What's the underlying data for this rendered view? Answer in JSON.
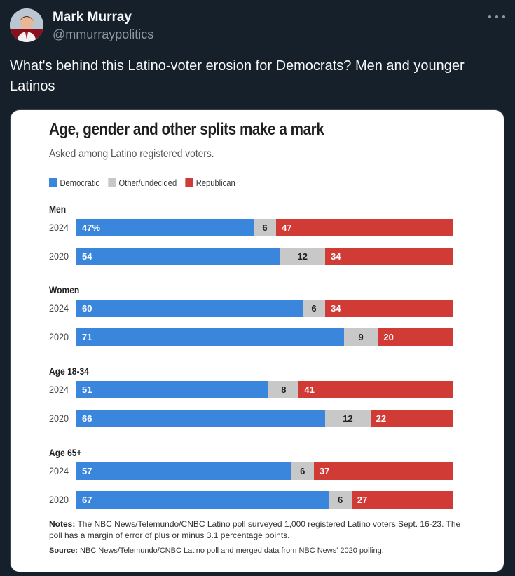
{
  "author": {
    "name": "Mark Murray",
    "handle": "@mmurraypolitics"
  },
  "tweet_text": "What's behind this Latino-voter erosion for Democrats? Men and younger Latinos",
  "chart_data": {
    "type": "bar",
    "stacked": true,
    "orientation": "horizontal",
    "title": "Age, gender and other splits make a mark",
    "subtitle": "Asked among Latino registered voters.",
    "legend": [
      {
        "name": "Democratic",
        "color": "#3a86dc"
      },
      {
        "name": "Other/undecided",
        "color": "#c8c8c8"
      },
      {
        "name": "Republican",
        "color": "#d13b35"
      }
    ],
    "groups": [
      {
        "label": "Men",
        "rows": [
          {
            "year": "2024",
            "dem": 47,
            "dem_label": "47%",
            "other": 6,
            "rep": 47
          },
          {
            "year": "2020",
            "dem": 54,
            "dem_label": "54",
            "other": 12,
            "rep": 34
          }
        ]
      },
      {
        "label": "Women",
        "rows": [
          {
            "year": "2024",
            "dem": 60,
            "dem_label": "60",
            "other": 6,
            "rep": 34
          },
          {
            "year": "2020",
            "dem": 71,
            "dem_label": "71",
            "other": 9,
            "rep": 20
          }
        ]
      },
      {
        "label": "Age 18-34",
        "rows": [
          {
            "year": "2024",
            "dem": 51,
            "dem_label": "51",
            "other": 8,
            "rep": 41
          },
          {
            "year": "2020",
            "dem": 66,
            "dem_label": "66",
            "other": 12,
            "rep": 22
          }
        ]
      },
      {
        "label": "Age 65+",
        "rows": [
          {
            "year": "2024",
            "dem": 57,
            "dem_label": "57",
            "other": 6,
            "rep": 37
          },
          {
            "year": "2020",
            "dem": 67,
            "dem_label": "67",
            "other": 6,
            "rep": 27
          }
        ]
      }
    ],
    "notes_label": "Notes:",
    "notes": "The NBC News/Telemundo/CNBC Latino poll surveyed 1,000 registered Latino voters Sept. 16-23. The poll has a margin of error of plus or minus 3.1 percentage points.",
    "source_label": "Source:",
    "source": "NBC News/Telemundo/CNBC Latino poll and merged data from NBC News' 2020 polling."
  }
}
